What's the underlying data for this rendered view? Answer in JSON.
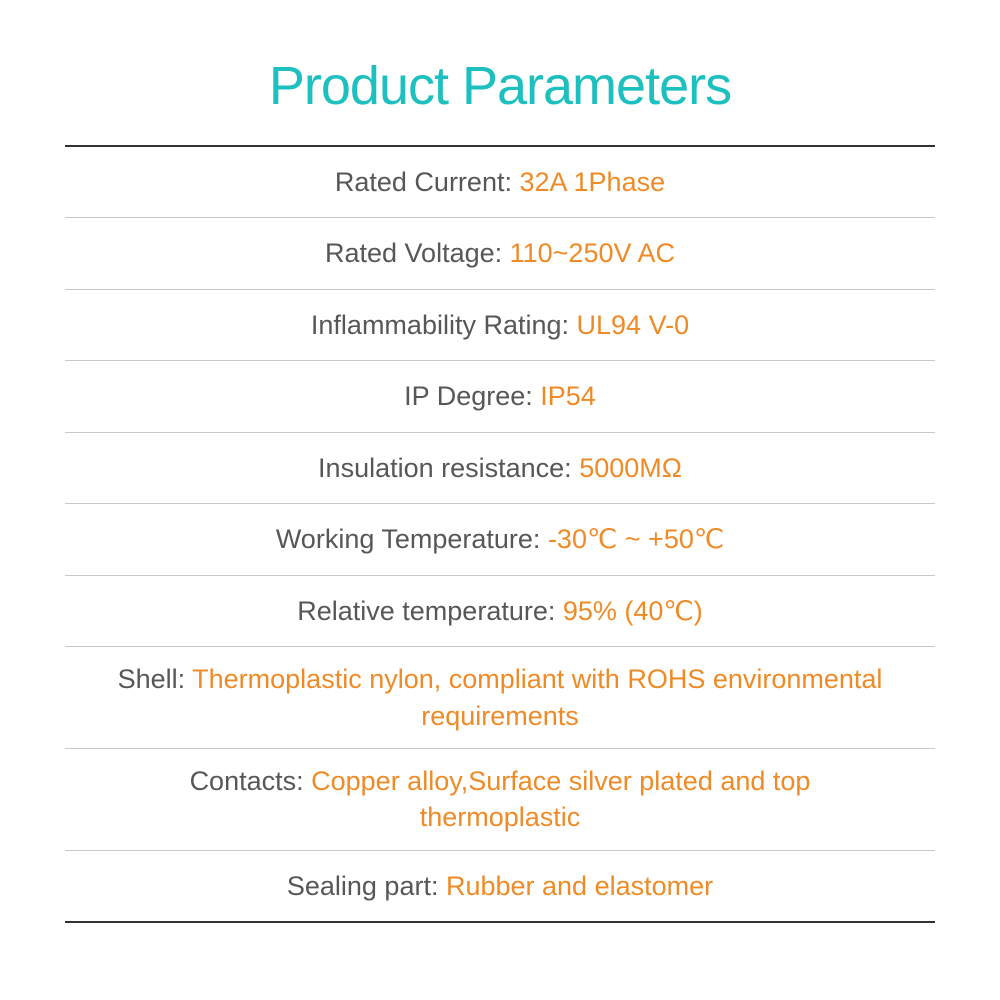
{
  "title": "Product Parameters",
  "colors": {
    "title": "#1ebfbf",
    "label": "#575757",
    "value": "#ee8b27",
    "divider": "#c9c9c9",
    "outer_divider": "#333333",
    "background": "#ffffff"
  },
  "typography": {
    "title_fontsize": 54,
    "row_fontsize": 27
  },
  "parameters": [
    {
      "label": "Rated Current: ",
      "value": "32A 1Phase"
    },
    {
      "label": "Rated Voltage: ",
      "value": "110~250V AC"
    },
    {
      "label": "Inflammability Rating: ",
      "value": "UL94 V-0"
    },
    {
      "label": "IP Degree: ",
      "value": "IP54"
    },
    {
      "label": "Insulation resistance: ",
      "value": "5000MΩ"
    },
    {
      "label": "Working Temperature: ",
      "value": "-30℃ ~ +50℃"
    },
    {
      "label": "Relative temperature: ",
      "value": "95% (40℃)"
    },
    {
      "label": "Shell: ",
      "value": "Thermoplastic nylon, compliant with ROHS environmental requirements",
      "multiline": true
    },
    {
      "label": "Contacts: ",
      "value": "Copper alloy,Surface silver plated and top thermoplastic",
      "multiline": true
    },
    {
      "label": "Sealing part: ",
      "value": "Rubber and elastomer"
    }
  ]
}
